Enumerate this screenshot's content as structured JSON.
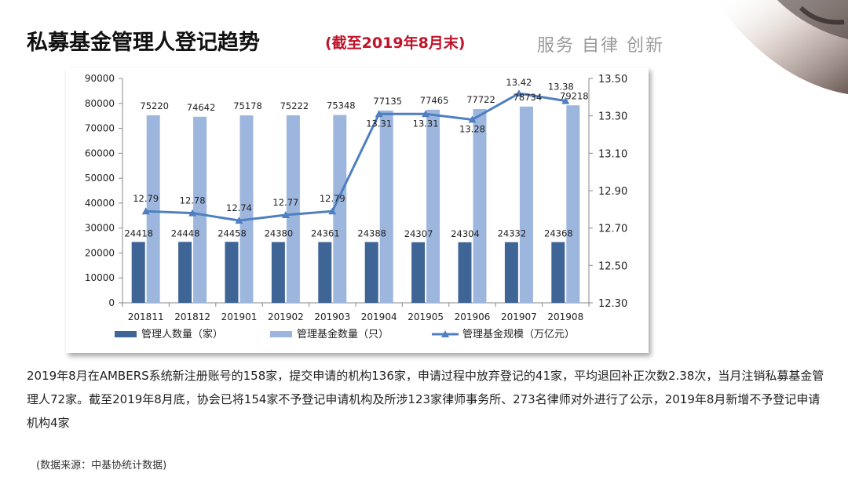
{
  "header": {
    "title": "私募基金管理人登记趋势",
    "subtitle": "(截至2019年8月末)",
    "slogan": "服务 自律 创新"
  },
  "chart_data": {
    "type": "bar+line",
    "categories": [
      "201811",
      "201812",
      "201901",
      "201902",
      "201903",
      "201904",
      "201905",
      "201906",
      "201907",
      "201908"
    ],
    "series": [
      {
        "name": "管理人数量（家）",
        "type": "bar",
        "axis": "left",
        "color": "#3f6496",
        "values": [
          24418,
          24448,
          24458,
          24380,
          24361,
          24388,
          24307,
          24304,
          24332,
          24368
        ]
      },
      {
        "name": "管理基金数量（只）",
        "type": "bar",
        "axis": "left",
        "color": "#9db6dd",
        "values": [
          75220,
          74642,
          75178,
          75222,
          75348,
          77135,
          77465,
          77722,
          78734,
          79218
        ]
      },
      {
        "name": "管理基金规模（万亿元）",
        "type": "line",
        "axis": "right",
        "color": "#4f7fc1",
        "values": [
          12.79,
          12.78,
          12.74,
          12.77,
          12.79,
          13.31,
          13.31,
          13.28,
          13.42,
          13.38
        ]
      }
    ],
    "y_left": {
      "min": 0,
      "max": 90000,
      "step": 10000,
      "ticks": [
        "0",
        "10000",
        "20000",
        "30000",
        "40000",
        "50000",
        "60000",
        "70000",
        "80000",
        "90000"
      ]
    },
    "y_right": {
      "min": 12.3,
      "max": 13.5,
      "step": 0.2,
      "ticks": [
        "12.30",
        "12.50",
        "12.70",
        "12.90",
        "13.10",
        "13.30",
        "13.50"
      ]
    },
    "legend_position": "bottom"
  },
  "body": {
    "paragraph": "2019年8月在AMBERS系统新注册账号的158家，提交申请的机构136家，申请过程中放弃登记的41家，平均退回补正次数2.38次，当月注销私募基金管理人72家。截至2019年8月底，协会已将154家不予登记申请机构及所涉123家律师事务所、273名律师对外进行了公示，2019年8月新增不予登记申请机构4家",
    "source": "(数据来源：中基协统计数据)"
  }
}
